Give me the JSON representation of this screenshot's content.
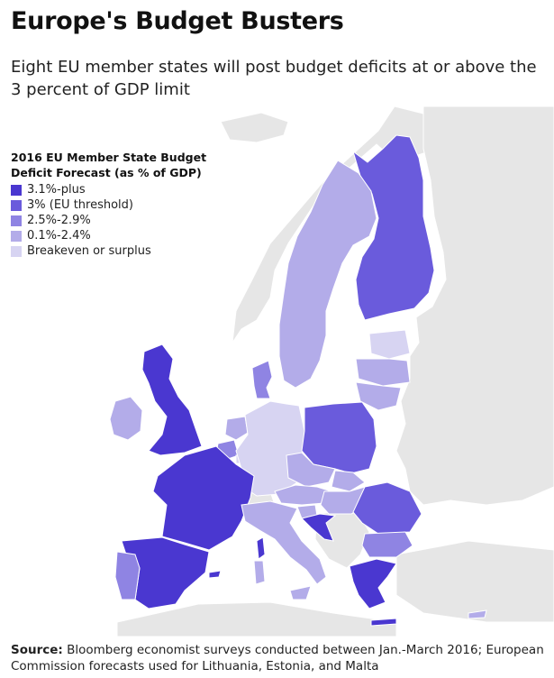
{
  "header": {
    "title": "Europe's Budget Busters",
    "subtitle": "Eight EU member states will post budget deficits at or above the 3 percent of GDP limit"
  },
  "legend": {
    "title": "2016 EU Member State Budget Deficit Forecast (as % of GDP)",
    "items": [
      {
        "label": "3.1%-plus",
        "color": "#4a37d0"
      },
      {
        "label": "3% (EU threshold)",
        "color": "#6a5bdc"
      },
      {
        "label": "2.5%-2.9%",
        "color": "#8f84e3"
      },
      {
        "label": "0.1%-2.4%",
        "color": "#b3ace9"
      },
      {
        "label": "Breakeven or surplus",
        "color": "#d7d4f2"
      }
    ]
  },
  "colors": {
    "land": "#e6e6e6",
    "border": "#ffffff"
  },
  "source": {
    "label": "Source:",
    "text": " Bloomberg economist surveys conducted between Jan.-March 2016; European Commission forecasts used for Lithuania, Estonia, and Malta"
  }
}
